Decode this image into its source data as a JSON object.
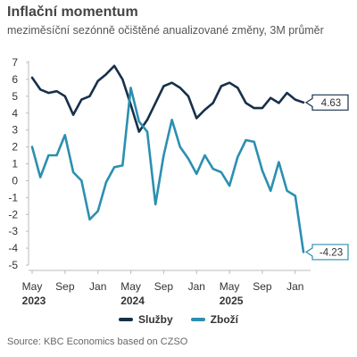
{
  "chart_data": {
    "type": "line",
    "title": "Inflační momentum",
    "subtitle": "meziměsíční sezónně očištěné anualizované změny, 3M průměr",
    "ylim": [
      -5,
      7
    ],
    "yticks": [
      -5,
      -4,
      -3,
      -2,
      -1,
      0,
      1,
      2,
      3,
      4,
      5,
      6,
      7
    ],
    "x": [
      "2023-05",
      "2023-06",
      "2023-07",
      "2023-08",
      "2023-09",
      "2023-10",
      "2023-11",
      "2023-12",
      "2024-01",
      "2024-02",
      "2024-03",
      "2024-04",
      "2024-05",
      "2024-06",
      "2024-07",
      "2024-08",
      "2024-09",
      "2024-10",
      "2024-11",
      "2024-12",
      "2025-01",
      "2025-02",
      "2025-03",
      "2025-04",
      "2025-05",
      "2025-06",
      "2025-07",
      "2025-08",
      "2025-09",
      "2025-10",
      "2025-11",
      "2025-12",
      "2026-01",
      "2026-02"
    ],
    "x_tick_labels": [
      {
        "x": "2023-05",
        "label": "May"
      },
      {
        "x": "2023-09",
        "label": "Sep"
      },
      {
        "x": "2024-01",
        "label": "Jan"
      },
      {
        "x": "2024-05",
        "label": "May"
      },
      {
        "x": "2024-09",
        "label": "Sep"
      },
      {
        "x": "2025-01",
        "label": "Jan"
      },
      {
        "x": "2025-05",
        "label": "May"
      },
      {
        "x": "2025-09",
        "label": "Sep"
      },
      {
        "x": "2026-01",
        "label": "Jan"
      }
    ],
    "year_labels": [
      {
        "x": "2023-05",
        "label": "2023"
      },
      {
        "x": "2024-05",
        "label": "2024"
      },
      {
        "x": "2025-05",
        "label": "2025"
      }
    ],
    "series": [
      {
        "name": "Služby",
        "color": "#16304a",
        "values": [
          6.1,
          5.4,
          5.2,
          5.3,
          5.0,
          3.9,
          4.8,
          5.0,
          5.9,
          6.3,
          6.8,
          6.0,
          4.5,
          2.9,
          3.6,
          4.6,
          5.6,
          5.8,
          5.5,
          5.0,
          3.7,
          4.2,
          4.6,
          5.6,
          5.8,
          5.5,
          4.6,
          4.3,
          4.3,
          4.9,
          4.6,
          5.2,
          4.8,
          4.63
        ],
        "callout": "4.63"
      },
      {
        "name": "Zboží",
        "color": "#2b8fb0",
        "values": [
          2.0,
          0.2,
          1.5,
          1.5,
          2.7,
          0.5,
          0.0,
          -2.3,
          -1.8,
          -0.1,
          0.8,
          0.9,
          5.5,
          3.5,
          2.9,
          -1.4,
          1.5,
          3.6,
          2.0,
          1.3,
          0.4,
          1.5,
          0.7,
          0.5,
          -0.3,
          1.4,
          2.4,
          2.3,
          0.6,
          -0.6,
          1.1,
          -0.6,
          -0.9,
          -4.23
        ],
        "callout": "-4.23"
      }
    ],
    "grid": false,
    "legend_position": "bottom"
  },
  "source": "Source: KBC Economics based on CZSO"
}
